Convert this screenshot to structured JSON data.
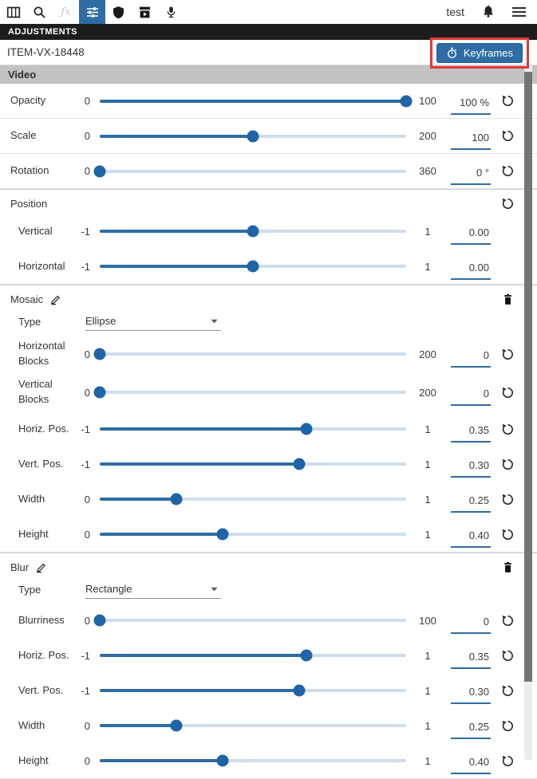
{
  "toolbar": {
    "tabs": [
      {
        "icon": "columns-icon",
        "active": false,
        "disabled": false
      },
      {
        "icon": "search-icon",
        "active": false,
        "disabled": false
      },
      {
        "icon": "fx-icon",
        "active": false,
        "disabled": true
      },
      {
        "icon": "sliders-icon",
        "active": true,
        "disabled": false
      },
      {
        "icon": "shield-icon",
        "active": false,
        "disabled": false
      },
      {
        "icon": "media-box-icon",
        "active": false,
        "disabled": false
      },
      {
        "icon": "mic-icon",
        "active": false,
        "disabled": false
      }
    ],
    "user": "test",
    "right_icons": [
      "bell-icon",
      "menu-icon"
    ]
  },
  "panel": {
    "header": "ADJUSTMENTS",
    "item_id": "ITEM-VX-18448",
    "keyframes_label": "Keyframes",
    "keyframes_icon": "stopwatch-icon",
    "annotation_color": "#e8363d"
  },
  "colors": {
    "accent": "#2e6da4",
    "slider_fill": "#2e6da4",
    "slider_track": "#cdddec",
    "active_tab": "#2e6da4",
    "header_bar": "#1d1d1d",
    "section_bar": "#c2c2c2"
  },
  "sections": [
    {
      "title": "Video",
      "style": "bar",
      "rows": [
        {
          "kind": "slider",
          "label": "Opacity",
          "min": "0",
          "max": "100",
          "value": "100 %",
          "pct": 100,
          "reset": true
        },
        {
          "kind": "slider",
          "label": "Scale",
          "min": "0",
          "max": "200",
          "value": "100",
          "pct": 50,
          "reset": true
        },
        {
          "kind": "slider",
          "label": "Rotation",
          "min": "0",
          "max": "360",
          "value": "0 °",
          "pct": 0,
          "reset": true
        }
      ]
    },
    {
      "title": "Position",
      "style": "box",
      "header_reset": true,
      "rows": [
        {
          "kind": "slider",
          "label": "Vertical",
          "min": "-1",
          "max": "1",
          "value": "0.00",
          "pct": 50,
          "reset": false,
          "indent": true
        },
        {
          "kind": "slider",
          "label": "Horizontal",
          "min": "-1",
          "max": "1",
          "value": "0.00",
          "pct": 50,
          "reset": false,
          "indent": true
        }
      ]
    },
    {
      "title": "Mosaic",
      "style": "box",
      "editable": true,
      "deletable": true,
      "rows": [
        {
          "kind": "select",
          "label": "Type",
          "value": "Ellipse",
          "indent": true
        },
        {
          "kind": "slider",
          "label": "Horizontal Blocks",
          "min": "0",
          "max": "200",
          "value": "0",
          "pct": 0,
          "reset": true,
          "indent": true,
          "tall": true
        },
        {
          "kind": "slider",
          "label": "Vertical Blocks",
          "min": "0",
          "max": "200",
          "value": "0",
          "pct": 0,
          "reset": true,
          "indent": true,
          "tall": true
        },
        {
          "kind": "slider",
          "label": "Horiz. Pos.",
          "min": "-1",
          "max": "1",
          "value": "0.35",
          "pct": 67.5,
          "reset": true,
          "indent": true
        },
        {
          "kind": "slider",
          "label": "Vert. Pos.",
          "min": "-1",
          "max": "1",
          "value": "0.30",
          "pct": 65,
          "reset": true,
          "indent": true
        },
        {
          "kind": "slider",
          "label": "Width",
          "min": "0",
          "max": "1",
          "value": "0.25",
          "pct": 25,
          "reset": true,
          "indent": true
        },
        {
          "kind": "slider",
          "label": "Height",
          "min": "0",
          "max": "1",
          "value": "0.40",
          "pct": 40,
          "reset": true,
          "indent": true
        }
      ]
    },
    {
      "title": "Blur",
      "style": "box",
      "editable": true,
      "deletable": true,
      "rows": [
        {
          "kind": "select",
          "label": "Type",
          "value": "Rectangle",
          "indent": true
        },
        {
          "kind": "slider",
          "label": "Blurriness",
          "min": "0",
          "max": "100",
          "value": "0",
          "pct": 0,
          "reset": true,
          "indent": true
        },
        {
          "kind": "slider",
          "label": "Horiz. Pos.",
          "min": "-1",
          "max": "1",
          "value": "0.35",
          "pct": 67.5,
          "reset": true,
          "indent": true
        },
        {
          "kind": "slider",
          "label": "Vert. Pos.",
          "min": "-1",
          "max": "1",
          "value": "0.30",
          "pct": 65,
          "reset": true,
          "indent": true
        },
        {
          "kind": "slider",
          "label": "Width",
          "min": "0",
          "max": "1",
          "value": "0.25",
          "pct": 25,
          "reset": true,
          "indent": true
        },
        {
          "kind": "slider",
          "label": "Height",
          "min": "0",
          "max": "1",
          "value": "0.40",
          "pct": 40,
          "reset": true,
          "indent": true
        }
      ]
    }
  ]
}
